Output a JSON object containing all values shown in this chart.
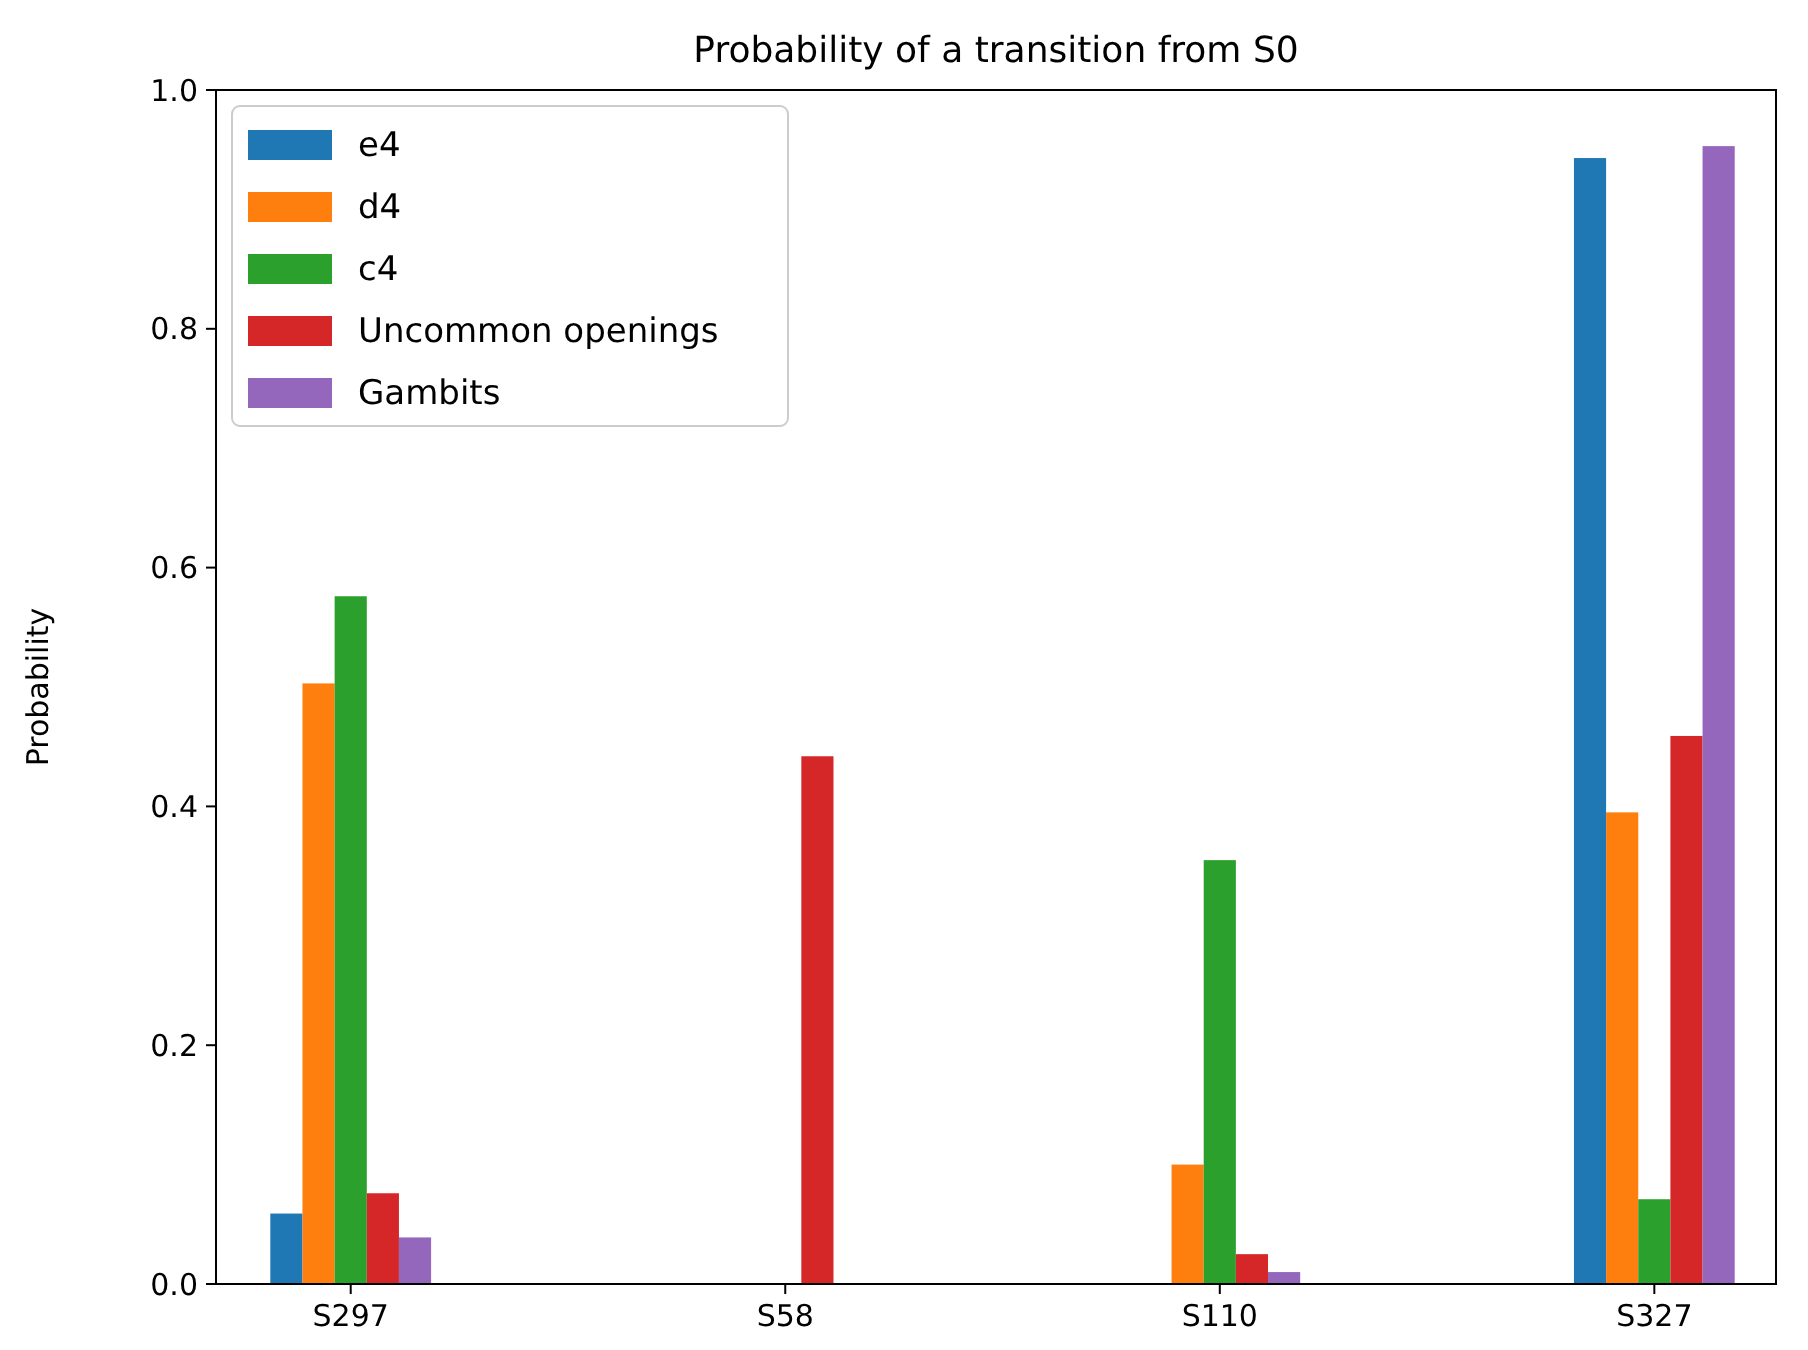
{
  "chart_data": {
    "type": "bar",
    "title": "Probability of a transition from S0",
    "ylabel": "Probability",
    "categories": [
      "S297",
      "S58",
      "S110",
      "S327"
    ],
    "series": [
      {
        "name": "e4",
        "color": "#1f77b4",
        "values": [
          0.059,
          0,
          0,
          0.943
        ]
      },
      {
        "name": "d4",
        "color": "#ff7f0e",
        "values": [
          0.503,
          0,
          0.1,
          0.395
        ]
      },
      {
        "name": "c4",
        "color": "#2ca02c",
        "values": [
          0.576,
          0,
          0.355,
          0.071
        ]
      },
      {
        "name": "Uncommon openings",
        "color": "#d62728",
        "values": [
          0.076,
          0.442,
          0.025,
          0.459
        ]
      },
      {
        "name": "Gambits",
        "color": "#9467bd",
        "values": [
          0.039,
          0,
          0.01,
          0.953
        ]
      }
    ],
    "ylim": [
      0,
      1
    ],
    "yticks": [
      {
        "value": 0,
        "label": "0.0"
      },
      {
        "value": 0.2,
        "label": "0.2"
      },
      {
        "value": 0.4,
        "label": "0.4"
      },
      {
        "value": 0.6,
        "label": "0.6"
      },
      {
        "value": 0.8,
        "label": "0.8"
      },
      {
        "value": 1,
        "label": "1.0"
      }
    ],
    "legend": "top left",
    "grid": false
  }
}
